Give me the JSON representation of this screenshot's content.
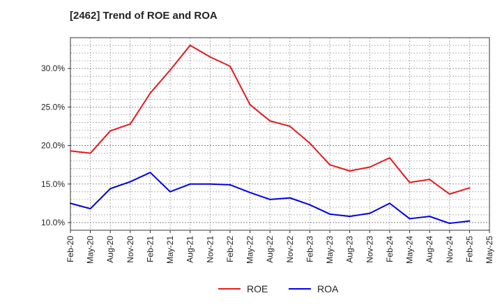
{
  "chart_data": {
    "type": "line",
    "title": "[2462]  Trend of ROE and ROA",
    "xlabel": "",
    "ylabel": "",
    "categories": [
      "Feb-20",
      "May-20",
      "Aug-20",
      "Nov-20",
      "Feb-21",
      "May-21",
      "Aug-21",
      "Nov-21",
      "Feb-22",
      "May-22",
      "Aug-22",
      "Nov-22",
      "Feb-23",
      "May-23",
      "Aug-23",
      "Nov-23",
      "Feb-24",
      "May-24",
      "Aug-24",
      "Nov-24",
      "Feb-25",
      "May-25"
    ],
    "ylim": [
      9.0,
      34.0
    ],
    "yticks": [
      10.0,
      15.0,
      20.0,
      25.0,
      30.0
    ],
    "ytick_labels": [
      "10.0%",
      "15.0%",
      "20.0%",
      "25.0%",
      "30.0%"
    ],
    "grid": true,
    "legend_position": "bottom-center",
    "series": [
      {
        "name": "ROE",
        "color": "#e41a1c",
        "values": [
          19.3,
          19.0,
          21.9,
          22.8,
          26.8,
          29.8,
          33.0,
          31.5,
          30.3,
          25.3,
          23.2,
          22.5,
          20.3,
          17.5,
          16.7,
          17.2,
          18.4,
          15.2,
          15.6,
          13.7,
          14.5,
          null
        ]
      },
      {
        "name": "ROA",
        "color": "#0000e6",
        "values": [
          12.5,
          11.8,
          14.4,
          15.3,
          16.5,
          14.0,
          15.0,
          15.0,
          14.9,
          13.9,
          13.0,
          13.2,
          12.3,
          11.1,
          10.8,
          11.2,
          12.5,
          10.5,
          10.8,
          9.9,
          10.2,
          null
        ]
      }
    ]
  }
}
